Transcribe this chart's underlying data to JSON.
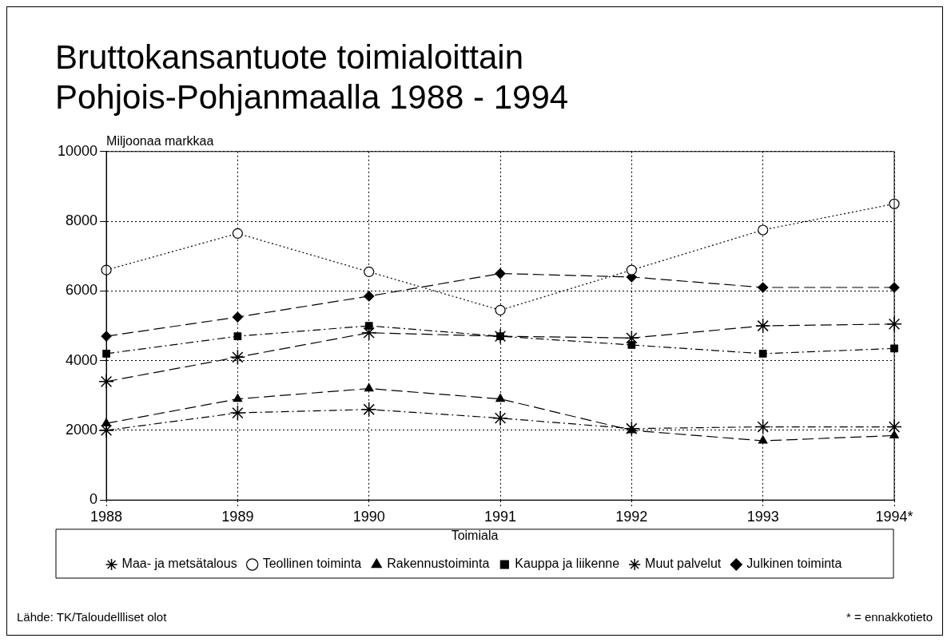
{
  "chart_data": {
    "type": "line",
    "title": "Bruttokansantuote toimialoittain\nPohjois-Pohjanmaalla 1988 - 1994",
    "ylabel": "Miljoonaa markkaa",
    "legend_title": "Toimiala",
    "categories": [
      "1988",
      "1989",
      "1990",
      "1991",
      "1992",
      "1993",
      "1994*"
    ],
    "series": [
      {
        "name": "Maa- ja metsätalous",
        "color": "#000000",
        "marker": "cross",
        "line_style": "dashdot",
        "values": [
          2000,
          2500,
          2600,
          2350,
          2050,
          2100,
          2100
        ]
      },
      {
        "name": "Teollinen toiminta",
        "color": "#000000",
        "marker": "circle",
        "line_style": "dotted",
        "values": [
          6600,
          7650,
          6550,
          5450,
          6600,
          7750,
          8500
        ]
      },
      {
        "name": "Rakennustoiminta",
        "color": "#000000",
        "marker": "triangle",
        "line_style": "dashed",
        "values": [
          2200,
          2900,
          3200,
          2900,
          2000,
          1700,
          1850
        ]
      },
      {
        "name": "Kauppa ja liikenne",
        "color": "#000000",
        "marker": "square",
        "line_style": "dashdot",
        "values": [
          4200,
          4700,
          5000,
          4700,
          4450,
          4200,
          4350
        ]
      },
      {
        "name": "Muut palvelut",
        "color": "#000000",
        "marker": "cross",
        "line_style": "dashed",
        "values": [
          3400,
          4100,
          4800,
          4700,
          4650,
          5000,
          5050
        ]
      },
      {
        "name": "Julkinen toiminta",
        "color": "#000000",
        "marker": "diamond",
        "line_style": "dashed",
        "values": [
          4700,
          5250,
          5850,
          6500,
          6400,
          6100,
          6100
        ]
      }
    ],
    "ylim": [
      0,
      10000
    ],
    "yticks": [
      0,
      2000,
      4000,
      6000,
      8000,
      10000
    ],
    "grid": true,
    "legend": "bottom",
    "annotations": [
      "Lähde: TK/Taloudellliset olot",
      "* = ennakkotieto"
    ]
  }
}
